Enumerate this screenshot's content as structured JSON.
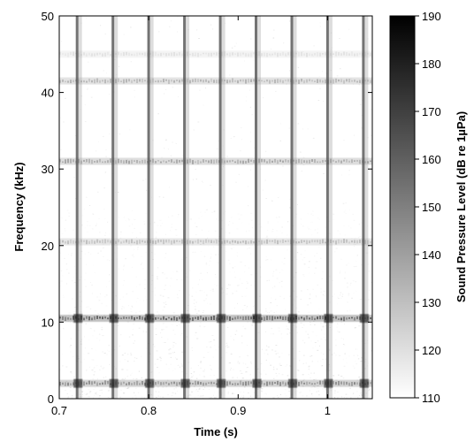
{
  "chart_data": {
    "type": "heatmap",
    "title": "",
    "xlabel": "Time (s)",
    "ylabel": "Frequency (kHz)",
    "xlim": [
      0.7,
      1.05
    ],
    "ylim": [
      0,
      50
    ],
    "x_ticks": [
      0.7,
      0.8,
      0.9,
      1
    ],
    "x_tick_labels": [
      "0.7",
      "0.8",
      "0.9",
      "1"
    ],
    "y_ticks": [
      0,
      10,
      20,
      30,
      40,
      50
    ],
    "y_tick_labels": [
      "0",
      "10",
      "20",
      "30",
      "40",
      "50"
    ],
    "colormap": "gray-reversed",
    "colorbar": {
      "label": "Sound Pressure Level (dB re 1µPa)",
      "range": [
        110,
        190
      ],
      "ticks": [
        110,
        120,
        130,
        140,
        150,
        160,
        170,
        180,
        190
      ],
      "tick_labels": [
        "110",
        "120",
        "130",
        "140",
        "150",
        "160",
        "170",
        "180",
        "190"
      ]
    },
    "pulse_times": [
      0.72,
      0.76,
      0.8,
      0.84,
      0.88,
      0.92,
      0.96,
      1.0,
      1.04
    ],
    "pulse_level": 165,
    "frequency_bands": [
      {
        "frequency": 2,
        "level": 150
      },
      {
        "frequency": 10.5,
        "level": 165
      },
      {
        "frequency": 20.5,
        "level": 132
      },
      {
        "frequency": 31,
        "level": 140
      },
      {
        "frequency": 41.5,
        "level": 135
      },
      {
        "frequency": 45,
        "level": 120
      }
    ],
    "background_level": 112,
    "low_frequency_noise_level": 128
  },
  "colors": {
    "background": "#ffffff",
    "axis": "#000000"
  }
}
